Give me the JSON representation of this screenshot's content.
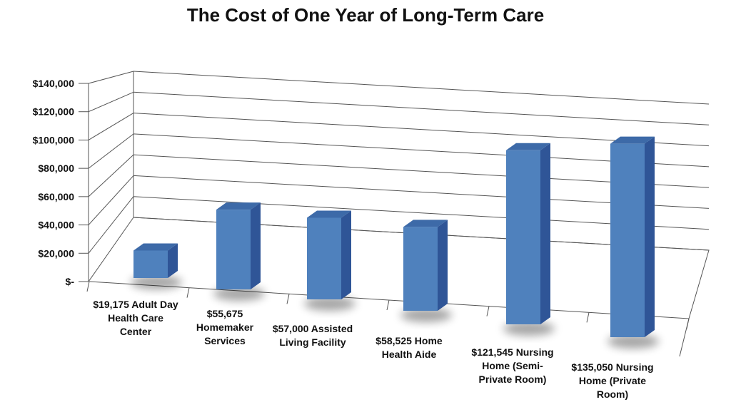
{
  "chart_data": {
    "type": "bar",
    "title": "The Cost of One Year of Long-Term Care",
    "xlabel": "",
    "ylabel": "",
    "categories": [
      "$19,175 Adult Day Health Care Center",
      "$55,675 Homemaker Services",
      "$57,000 Assisted Living Facility",
      "$58,525 Home Health Aide",
      "$121,545 Nursing Home (Semi-Private Room)",
      "$135,050 Nursing Home (Private Room)"
    ],
    "category_label_lines": [
      [
        "$19,175 Adult Day",
        "Health Care",
        "Center"
      ],
      [
        "$55,675",
        "Homemaker",
        "Services"
      ],
      [
        "$57,000 Assisted",
        "Living Facility"
      ],
      [
        "$58,525 Home",
        "Health Aide"
      ],
      [
        "$121,545 Nursing",
        "Home (Semi-",
        "Private Room)"
      ],
      [
        "$135,050 Nursing",
        "Home (Private",
        "Room)"
      ]
    ],
    "values": [
      19175,
      55675,
      57000,
      58525,
      121545,
      135050
    ],
    "ylim": [
      0,
      140000
    ],
    "yticks": [
      0,
      20000,
      40000,
      60000,
      80000,
      100000,
      120000,
      140000
    ],
    "ytick_labels": [
      "$-",
      "$20,000",
      "$40,000",
      "$60,000",
      "$80,000",
      "$100,000",
      "$120,000",
      "$140,000"
    ],
    "grid": true,
    "legend": "none",
    "style": "3d-column",
    "colors": {
      "bar_front": "#4f81bd",
      "bar_side": "#2f5597",
      "bar_top": "#3d6aa8",
      "grid": "#555555"
    }
  }
}
